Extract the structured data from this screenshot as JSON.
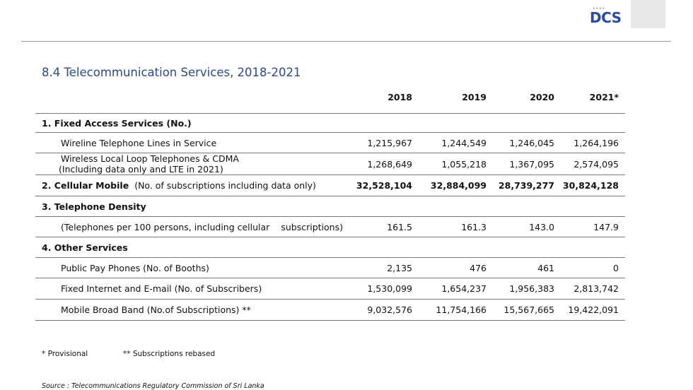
{
  "logo": {
    "text": "DCS"
  },
  "title": "8.4 Telecommunication Services, 2018-2021",
  "table": {
    "years": [
      "2018",
      "2019",
      "2020",
      "2021*"
    ],
    "rows": [
      {
        "kind": "section",
        "label": "1. Fixed  Access Services (No.)"
      },
      {
        "kind": "item",
        "label": "Wireline Telephone Lines in Service",
        "values": [
          "1,215,967",
          "1,244,549",
          "1,246,045",
          "1,264,196"
        ]
      },
      {
        "kind": "item2",
        "label": "Wireless Local Loop Telephones & CDMA",
        "label2": "(Including data only and LTE in 2021)",
        "values": [
          "1,268,649",
          "1,055,218",
          "1,367,095",
          "2,574,095"
        ]
      },
      {
        "kind": "sectionvals",
        "label": "2. Cellular Mobile",
        "suffix": "(No. of subscriptions including data only)",
        "values": [
          "32,528,104",
          "32,884,099",
          "28,739,277",
          "30,824,128"
        ]
      },
      {
        "kind": "section",
        "label": "3. Telephone  Density"
      },
      {
        "kind": "item",
        "label": "(Telephones per 100 persons, including cellular",
        "label_tail": "subscriptions)",
        "values": [
          "161.5",
          "161.3",
          "143.0",
          "147.9"
        ]
      },
      {
        "kind": "section",
        "label": "4. Other Services"
      },
      {
        "kind": "item",
        "label": "Public Pay Phones (No. of Booths)",
        "values": [
          "2,135",
          "476",
          "461",
          "0"
        ]
      },
      {
        "kind": "item",
        "label": "Fixed  Internet and E-mail (No. of Subscribers)",
        "values": [
          "1,530,099",
          "1,654,237",
          "1,956,383",
          "2,813,742"
        ]
      },
      {
        "kind": "item",
        "label": "Mobile Broad Band (No.of Subscriptions) **",
        "values": [
          "9,032,576",
          "11,754,166",
          "15,567,665",
          "19,422,091"
        ]
      }
    ]
  },
  "notes": {
    "provisional": "*  Provisional",
    "rebased": "** Subscriptions  rebased",
    "source": "Source : Telecommunications Regulatory Commission of Sri Lanka"
  }
}
